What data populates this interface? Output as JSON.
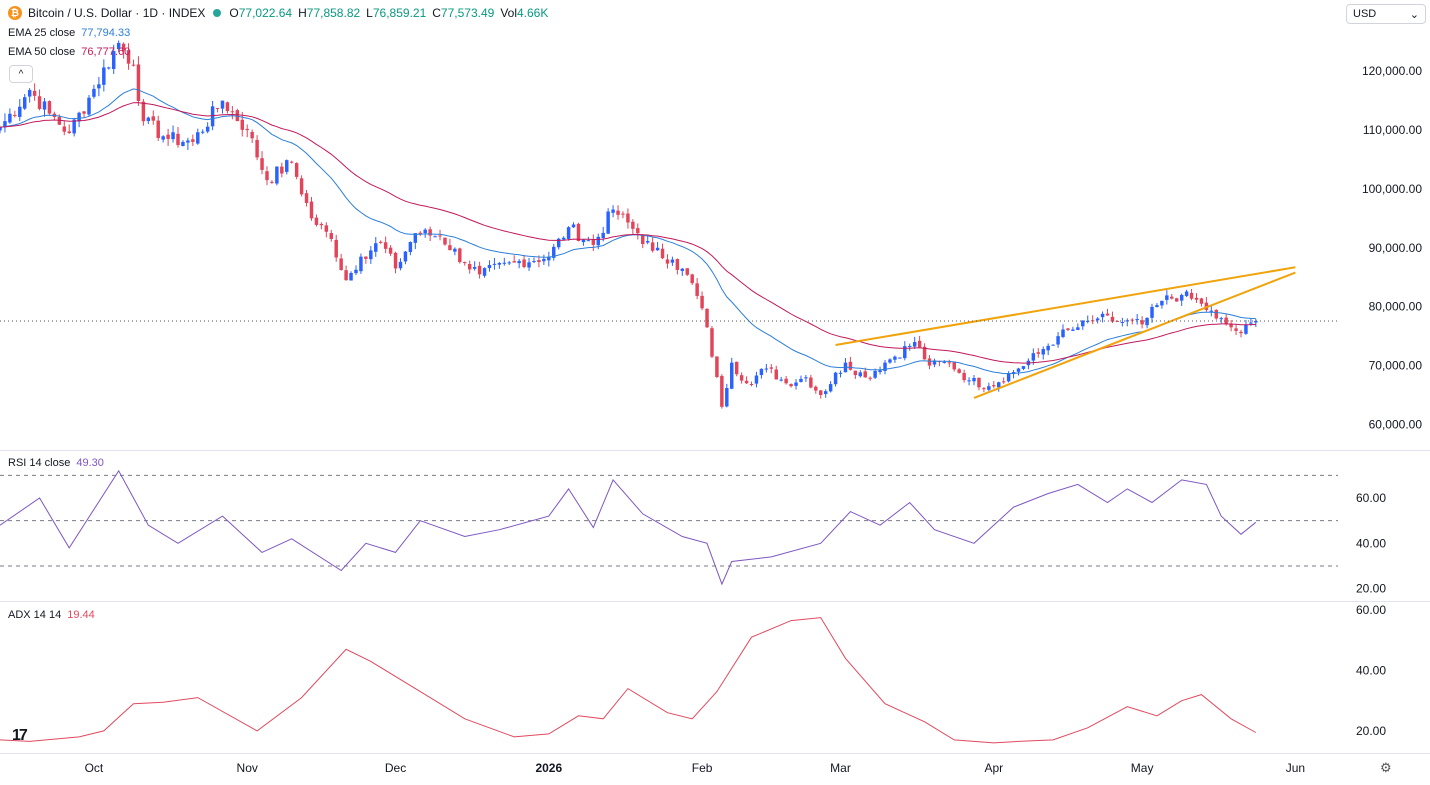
{
  "header": {
    "symbol_title": "Bitcoin / U.S. Dollar · 1D · INDEX",
    "open_label": "O",
    "open": "77,022.64",
    "high_label": "H",
    "high": "77,858.82",
    "low_label": "L",
    "low": "76,859.21",
    "close_label": "C",
    "close": "77,573.49",
    "vol_label": "Vol",
    "vol": "4.66K",
    "logo_glyph": "₿"
  },
  "indicators": {
    "ema25_label": "EMA 25 close",
    "ema25_value": "77,794.33",
    "ema50_label": "EMA 50 close",
    "ema50_value": "76,777.60",
    "rsi_label": "RSI 14 close",
    "rsi_value": "49.30",
    "adx_label": "ADX 14 14",
    "adx_value": "19.44",
    "collapse_icon": "^"
  },
  "currency": {
    "value": "USD",
    "icon": "chevron-down-icon"
  },
  "branding": {
    "glyph": "17"
  },
  "colors": {
    "up": "#2962ff",
    "down": "#e2455a",
    "ema25": "#2c7fd8",
    "ema50": "#c2185b",
    "rsi": "#7e57c2",
    "adx": "#e04a5f",
    "trendline": "#f0a30a",
    "axis_text": "#131722"
  },
  "chart_data": [
    {
      "type": "candlestick",
      "title": "Bitcoin / U.S. Dollar · 1D · INDEX",
      "ylim": [
        56000,
        127000
      ],
      "y_ticks": [
        60000,
        70000,
        80000,
        90000,
        100000,
        110000,
        120000
      ],
      "y_tick_labels": [
        "60,000.00",
        "70,000.00",
        "80,000.00",
        "90,000.00",
        "100,000.00",
        "110,000.00",
        "120,000.00"
      ],
      "x_start": "2025-09-12",
      "x_end": "2026-06-08",
      "x_ticks": [
        {
          "date": "2025-10-01",
          "label": "Oct"
        },
        {
          "date": "2025-11-01",
          "label": "Nov"
        },
        {
          "date": "2025-12-01",
          "label": "Dec"
        },
        {
          "date": "2026-01-01",
          "label": "2026"
        },
        {
          "date": "2026-02-01",
          "label": "Feb"
        },
        {
          "date": "2026-03-01",
          "label": "Mar"
        },
        {
          "date": "2026-04-01",
          "label": "Apr"
        },
        {
          "date": "2026-05-01",
          "label": "May"
        },
        {
          "date": "2026-06-01",
          "label": "Jun"
        }
      ],
      "close_anchors": [
        [
          "2025-09-12",
          110500
        ],
        [
          "2025-09-18",
          116800
        ],
        [
          "2025-09-22",
          112800
        ],
        [
          "2025-09-26",
          109500
        ],
        [
          "2025-10-01",
          117000
        ],
        [
          "2025-10-06",
          124800
        ],
        [
          "2025-10-09",
          121000
        ],
        [
          "2025-10-11",
          111500
        ],
        [
          "2025-10-16",
          108500
        ],
        [
          "2025-10-21",
          108000
        ],
        [
          "2025-10-27",
          115000
        ],
        [
          "2025-11-01",
          110000
        ],
        [
          "2025-11-05",
          101500
        ],
        [
          "2025-11-10",
          104500
        ],
        [
          "2025-11-14",
          95000
        ],
        [
          "2025-11-18",
          91500
        ],
        [
          "2025-11-21",
          84500
        ],
        [
          "2025-11-24",
          88500
        ],
        [
          "2025-11-28",
          91000
        ],
        [
          "2025-12-01",
          86500
        ],
        [
          "2025-12-05",
          92500
        ],
        [
          "2025-12-10",
          92000
        ],
        [
          "2025-12-15",
          87500
        ],
        [
          "2025-12-18",
          85500
        ],
        [
          "2025-12-25",
          87500
        ],
        [
          "2026-01-01",
          88500
        ],
        [
          "2026-01-05",
          93500
        ],
        [
          "2026-01-10",
          90500
        ],
        [
          "2026-01-14",
          96500
        ],
        [
          "2026-01-19",
          92500
        ],
        [
          "2026-01-22",
          89500
        ],
        [
          "2026-01-26",
          88000
        ],
        [
          "2026-01-30",
          84000
        ],
        [
          "2026-02-02",
          76500
        ],
        [
          "2026-02-05",
          63000
        ],
        [
          "2026-02-07",
          70500
        ],
        [
          "2026-02-10",
          67000
        ],
        [
          "2026-02-14",
          69500
        ],
        [
          "2026-02-18",
          67000
        ],
        [
          "2026-02-22",
          68000
        ],
        [
          "2026-02-25",
          65000
        ],
        [
          "2026-03-02",
          70500
        ],
        [
          "2026-03-06",
          68000
        ],
        [
          "2026-03-10",
          70500
        ],
        [
          "2026-03-16",
          74000
        ],
        [
          "2026-03-19",
          70000
        ],
        [
          "2026-03-23",
          70500
        ],
        [
          "2026-03-27",
          67500
        ],
        [
          "2026-03-31",
          66500
        ],
        [
          "2026-04-06",
          69500
        ],
        [
          "2026-04-10",
          72000
        ],
        [
          "2026-04-14",
          75000
        ],
        [
          "2026-04-18",
          76500
        ],
        [
          "2026-04-22",
          78000
        ],
        [
          "2026-04-26",
          77500
        ],
        [
          "2026-05-01",
          77000
        ],
        [
          "2026-05-05",
          81000
        ],
        [
          "2026-05-09",
          82000
        ],
        [
          "2026-05-13",
          80500
        ],
        [
          "2026-05-16",
          78000
        ],
        [
          "2026-05-19",
          76500
        ],
        [
          "2026-05-21",
          75500
        ],
        [
          "2026-05-24",
          77573
        ]
      ],
      "last_price": 77573.49,
      "series": [
        {
          "name": "EMA 25 close"
        },
        {
          "name": "EMA 50 close"
        }
      ],
      "trendlines": [
        {
          "from": [
            "2026-02-28",
            73500
          ],
          "to": [
            "2026-06-01",
            86700
          ]
        },
        {
          "from": [
            "2026-03-28",
            64500
          ],
          "to": [
            "2026-06-01",
            85800
          ]
        }
      ]
    },
    {
      "type": "line",
      "title": "RSI 14 close",
      "ylim": [
        15,
        75
      ],
      "y_ticks": [
        20,
        40,
        60
      ],
      "y_tick_labels": [
        "20.00",
        "40.00",
        "60.00"
      ],
      "levels": [
        70,
        50,
        30
      ],
      "x": [
        "2025-09-12",
        "2025-09-20",
        "2025-09-26",
        "2025-10-06",
        "2025-10-12",
        "2025-10-18",
        "2025-10-27",
        "2025-11-04",
        "2025-11-10",
        "2025-11-20",
        "2025-11-25",
        "2025-12-01",
        "2025-12-06",
        "2025-12-15",
        "2025-12-22",
        "2026-01-01",
        "2026-01-05",
        "2026-01-10",
        "2026-01-14",
        "2026-01-20",
        "2026-01-28",
        "2026-02-02",
        "2026-02-05",
        "2026-02-07",
        "2026-02-15",
        "2026-02-25",
        "2026-03-03",
        "2026-03-09",
        "2026-03-15",
        "2026-03-20",
        "2026-03-28",
        "2026-04-05",
        "2026-04-12",
        "2026-04-18",
        "2026-04-24",
        "2026-04-28",
        "2026-05-03",
        "2026-05-09",
        "2026-05-14",
        "2026-05-17",
        "2026-05-21",
        "2026-05-24"
      ],
      "values": [
        48,
        60,
        38,
        72,
        48,
        40,
        52,
        36,
        42,
        28,
        40,
        36,
        50,
        43,
        46,
        52,
        64,
        47,
        68,
        53,
        43,
        40,
        22,
        32,
        34,
        40,
        54,
        48,
        58,
        46,
        40,
        56,
        62,
        66,
        58,
        64,
        58,
        68,
        66,
        52,
        44,
        49.3
      ]
    },
    {
      "type": "line",
      "title": "ADX 14 14",
      "ylim": [
        13,
        62
      ],
      "y_ticks": [
        20,
        40,
        60
      ],
      "y_tick_labels": [
        "20.00",
        "40.00",
        "60.00"
      ],
      "x": [
        "2025-09-12",
        "2025-09-18",
        "2025-09-28",
        "2025-10-03",
        "2025-10-09",
        "2025-10-15",
        "2025-10-22",
        "2025-11-03",
        "2025-11-12",
        "2025-11-21",
        "2025-11-26",
        "2025-12-08",
        "2025-12-15",
        "2025-12-25",
        "2026-01-01",
        "2026-01-07",
        "2026-01-12",
        "2026-01-17",
        "2026-01-25",
        "2026-01-30",
        "2026-02-04",
        "2026-02-11",
        "2026-02-19",
        "2026-02-25",
        "2026-03-02",
        "2026-03-10",
        "2026-03-18",
        "2026-03-24",
        "2026-04-01",
        "2026-04-06",
        "2026-04-13",
        "2026-04-20",
        "2026-04-28",
        "2026-05-04",
        "2026-05-09",
        "2026-05-13",
        "2026-05-19",
        "2026-05-24"
      ],
      "values": [
        17,
        16.5,
        18,
        20,
        29,
        29.5,
        31,
        20,
        31,
        47,
        43,
        31,
        24,
        18,
        19,
        25,
        24,
        34,
        26,
        24,
        33,
        51,
        56.5,
        57.5,
        44,
        29,
        23,
        17,
        16,
        16.5,
        17,
        21,
        28,
        25,
        30,
        32,
        24,
        19.44
      ]
    }
  ]
}
